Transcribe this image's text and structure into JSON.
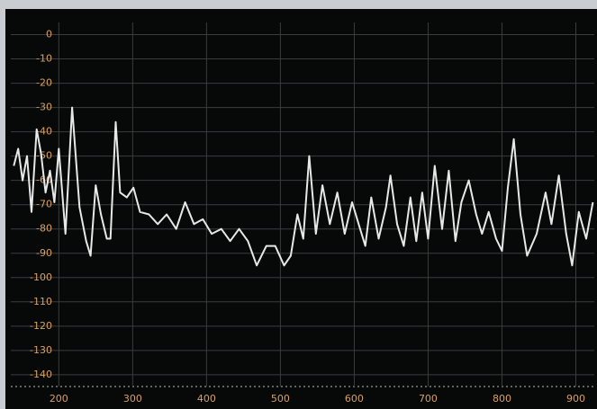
{
  "chart_data": {
    "type": "line",
    "x": [
      139,
      145,
      151,
      157,
      163,
      170,
      176,
      182,
      188,
      194,
      200,
      209,
      218,
      228,
      237,
      243,
      250,
      257,
      265,
      270,
      277,
      283,
      292,
      301,
      310,
      322,
      334,
      346,
      359,
      371,
      383,
      395,
      407,
      420,
      432,
      444,
      456,
      468,
      481,
      493,
      505,
      514,
      523,
      531,
      539,
      548,
      557,
      567,
      577,
      587,
      597,
      606,
      615,
      623,
      633,
      643,
      649,
      658,
      667,
      676,
      684,
      692,
      700,
      709,
      719,
      728,
      737,
      745,
      755,
      765,
      773,
      782,
      792,
      800,
      808,
      816,
      825,
      834,
      847,
      859,
      867,
      877,
      887,
      895,
      904,
      914,
      923
    ],
    "values": [
      -54,
      -47,
      -60,
      -50,
      -73,
      -39,
      -49,
      -65,
      -56,
      -69,
      -47,
      -82,
      -30,
      -71,
      -85,
      -91,
      -62,
      -74,
      -84,
      -84,
      -36,
      -65,
      -67,
      -63,
      -73,
      -74,
      -78,
      -74,
      -80,
      -69,
      -78,
      -76,
      -82,
      -80,
      -85,
      -80,
      -85,
      -95,
      -87,
      -87,
      -95,
      -91,
      -74,
      -84,
      -50,
      -82,
      -62,
      -78,
      -65,
      -82,
      -69,
      -78,
      -87,
      -67,
      -84,
      -71,
      -58,
      -78,
      -87,
      -67,
      -85,
      -65,
      -84,
      -54,
      -80,
      -56,
      -85,
      -69,
      -60,
      -74,
      -82,
      -73,
      -84,
      -89,
      -63,
      -43,
      -74,
      -91,
      -82,
      -65,
      -78,
      -58,
      -82,
      -95,
      -73,
      -84,
      -69
    ],
    "color": "#e8e8e8",
    "xlim": [
      135,
      925
    ],
    "xticks": [
      200,
      300,
      400,
      500,
      600,
      700,
      800,
      900
    ],
    "ylim": [
      -143,
      5
    ],
    "yticks": [
      0,
      -10,
      -20,
      -30,
      -40,
      -50,
      -60,
      -70,
      -80,
      -90,
      -100,
      -110,
      -120,
      -130,
      -140
    ],
    "grid": true
  }
}
